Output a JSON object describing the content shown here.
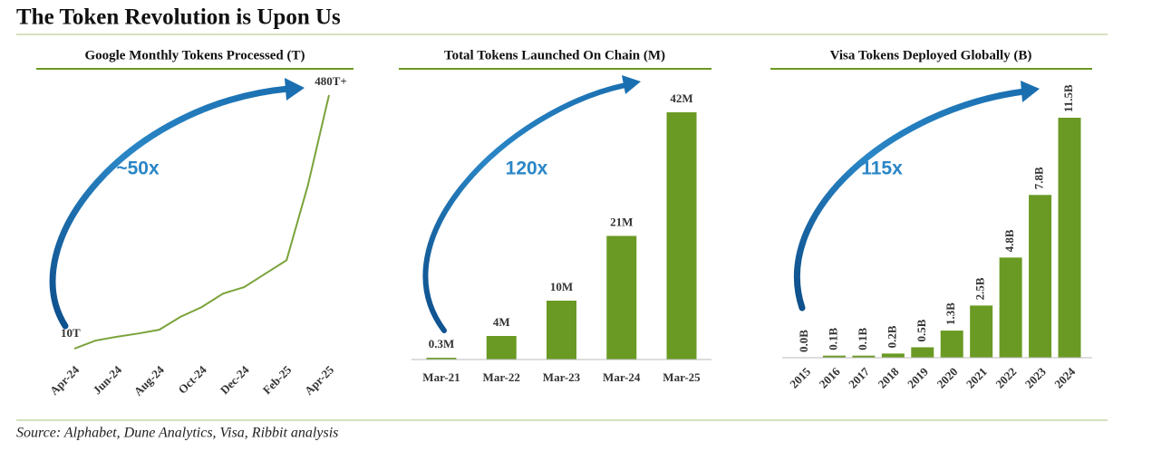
{
  "title": "The Token Revolution is Upon Us",
  "source": "Source: Alphabet, Dune Analytics, Visa, Ribbit analysis",
  "chart_data": [
    {
      "type": "line",
      "title": "Google Monthly Tokens Processed (T)",
      "color": "#7aa33a",
      "categories": [
        "Apr-24",
        null,
        "Jun-24",
        null,
        "Aug-24",
        null,
        "Oct-24",
        null,
        "Dec-24",
        null,
        "Feb-25",
        null,
        "Apr-25"
      ],
      "values": [
        10,
        25,
        32,
        38,
        45,
        69,
        87,
        112,
        124,
        149,
        174,
        312,
        480
      ],
      "value_labels": [
        "10T",
        null,
        null,
        null,
        null,
        null,
        null,
        null,
        null,
        null,
        null,
        null,
        "480T+"
      ],
      "annotation": "~50x"
    },
    {
      "type": "bar",
      "title": "Total Tokens Launched On Chain (M)",
      "color": "#6a9a23",
      "categories": [
        "Mar-21",
        "Mar-22",
        "Mar-23",
        "Mar-24",
        "Mar-25"
      ],
      "values": [
        0.3,
        4,
        10,
        21,
        42
      ],
      "value_labels": [
        "0.3M",
        "4M",
        "10M",
        "21M",
        "42M"
      ],
      "annotation": "120x"
    },
    {
      "type": "bar",
      "title": "Visa Tokens Deployed Globally (B)",
      "color": "#6a9a23",
      "categories": [
        "2015",
        "2016",
        "2017",
        "2018",
        "2019",
        "2020",
        "2021",
        "2022",
        "2023",
        "2024"
      ],
      "values": [
        0.0,
        0.1,
        0.1,
        0.2,
        0.5,
        1.3,
        2.5,
        4.8,
        7.8,
        11.5
      ],
      "value_labels": [
        "0.0B",
        "0.1B",
        "0.1B",
        "0.2B",
        "0.5B",
        "1.3B",
        "2.5B",
        "4.8B",
        "7.8B",
        "11.5B"
      ],
      "annotation": "115x"
    }
  ]
}
